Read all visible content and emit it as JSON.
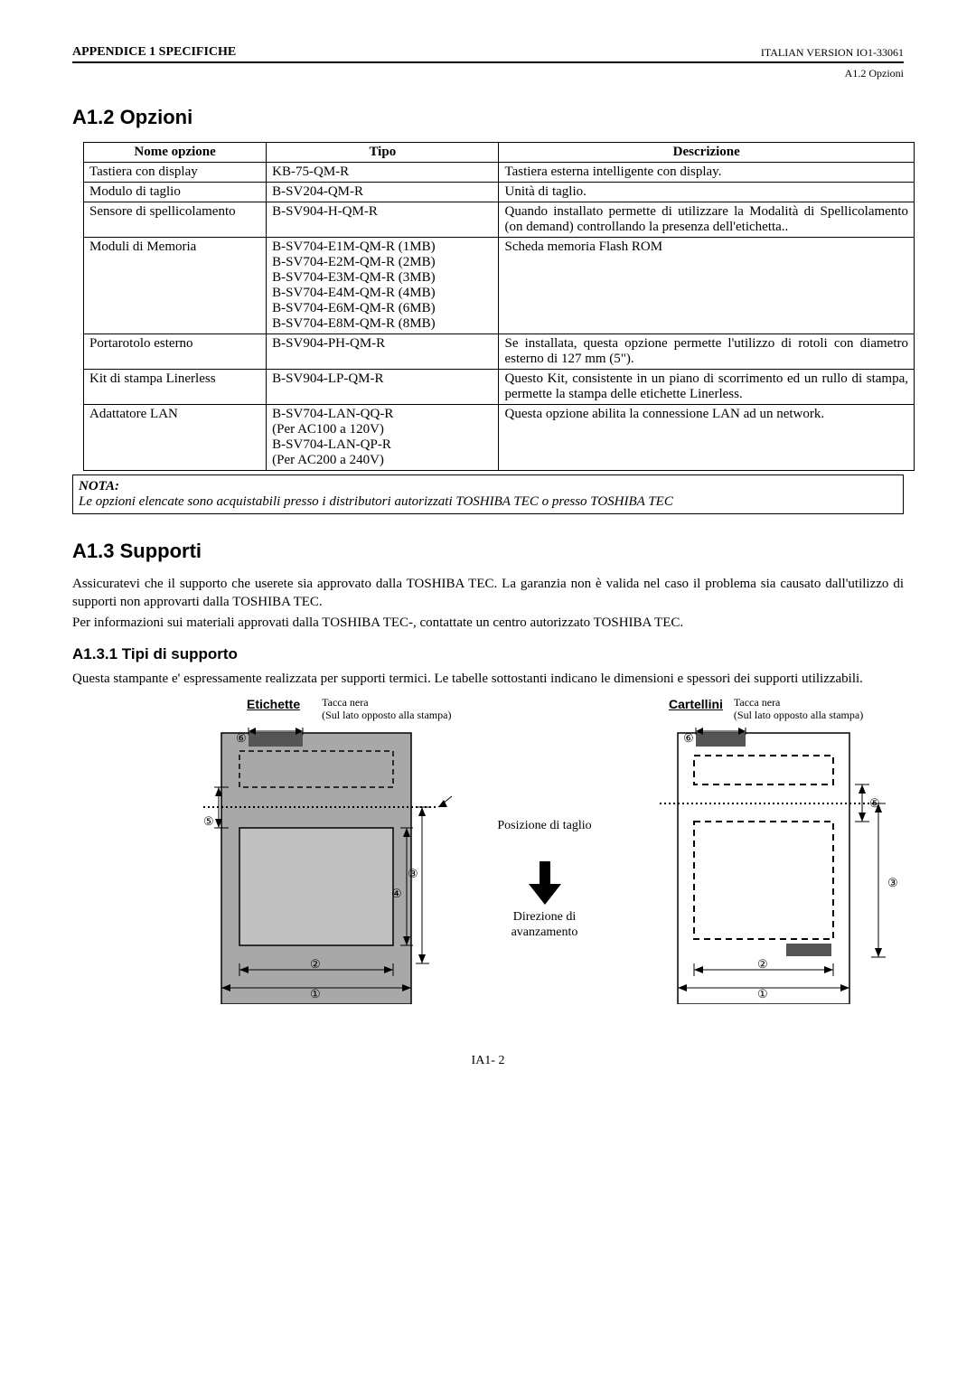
{
  "header": {
    "left": "APPENDICE 1 SPECIFICHE",
    "right": "ITALIAN VERSION IO1-33061",
    "sub": "A1.2 Opzioni"
  },
  "section_a12": {
    "title": "A1.2   Opzioni",
    "table": {
      "headers": [
        "Nome opzione",
        "Tipo",
        "Descrizione"
      ],
      "rows": [
        {
          "name": "Tastiera con display",
          "type": "KB-75-QM-R",
          "desc": "Tastiera esterna intelligente con display."
        },
        {
          "name": "Modulo di taglio",
          "type": "B-SV204-QM-R",
          "desc": "Unità di taglio."
        },
        {
          "name": "Sensore di spellicolamento",
          "type": "B-SV904-H-QM-R",
          "desc": "Quando installato permette di utilizzare la Modalità di Spellicolamento (on demand) controllando la presenza dell'etichetta.."
        },
        {
          "name": "Moduli di Memoria",
          "type": "B-SV704-E1M-QM-R (1MB)\nB-SV704-E2M-QM-R (2MB)\nB-SV704-E3M-QM-R (3MB)\nB-SV704-E4M-QM-R (4MB)\nB-SV704-E6M-QM-R (6MB)\nB-SV704-E8M-QM-R (8MB)",
          "desc": "Scheda memoria Flash ROM"
        },
        {
          "name": "Portarotolo esterno",
          "type": "B-SV904-PH-QM-R",
          "desc": "Se installata, questa opzione permette l'utilizzo di rotoli con diametro esterno di 127 mm (5\")."
        },
        {
          "name": "Kit di stampa Linerless",
          "type": "B-SV904-LP-QM-R",
          "desc": "Questo Kit, consistente in un piano di scorrimento ed un rullo di stampa, permette la stampa delle etichette Linerless."
        },
        {
          "name": "Adattatore LAN",
          "type": "B-SV704-LAN-QQ-R\n(Per AC100 a 120V)\nB-SV704-LAN-QP-R\n(Per AC200 a 240V)",
          "desc": "Questa opzione abilita la connessione LAN ad un network."
        }
      ]
    },
    "note_title": "NOTA:",
    "note_body": "Le opzioni elencate sono acquistabili presso i distributori autorizzati TOSHIBA TEC o presso TOSHIBA TEC"
  },
  "section_a13": {
    "title": "A1.3   Supporti",
    "p1": "Assicuratevi che il supporto che userete sia approvato dalla TOSHIBA TEC.  La garanzia non è valida nel caso il problema sia causato dall'utilizzo di supporti non approvarti dalla TOSHIBA TEC.",
    "p2": "Per informazioni sui materiali approvati dalla TOSHIBA TEC-, contattate un centro autorizzato TOSHIBA TEC.",
    "sub_title": "A1.3.1  Tipi di supporto",
    "p3": "Questa stampante e' espressamente realizzata per supporti termici.  Le tabelle sottostanti indicano le dimensioni e spessori dei supporti utilizzabili."
  },
  "diagram": {
    "left_title": "Etichette",
    "right_title": "Cartellini",
    "tacca_label": "Tacca nera",
    "tacca_sub": "(Sul lato opposto alla stampa)",
    "pos_taglio": "Posizione di taglio",
    "direzione": "Direzione di avanzamento",
    "circled": {
      "c1": "①",
      "c2": "②",
      "c3": "③",
      "c4": "④",
      "c5": "⑤",
      "c6": "⑥"
    },
    "colors": {
      "dark_fill": "#a8a8a8",
      "mid_fill": "#c0c0c0",
      "light_fill": "#ffffff",
      "stroke": "#000000"
    }
  },
  "footer": "IA1- 2"
}
